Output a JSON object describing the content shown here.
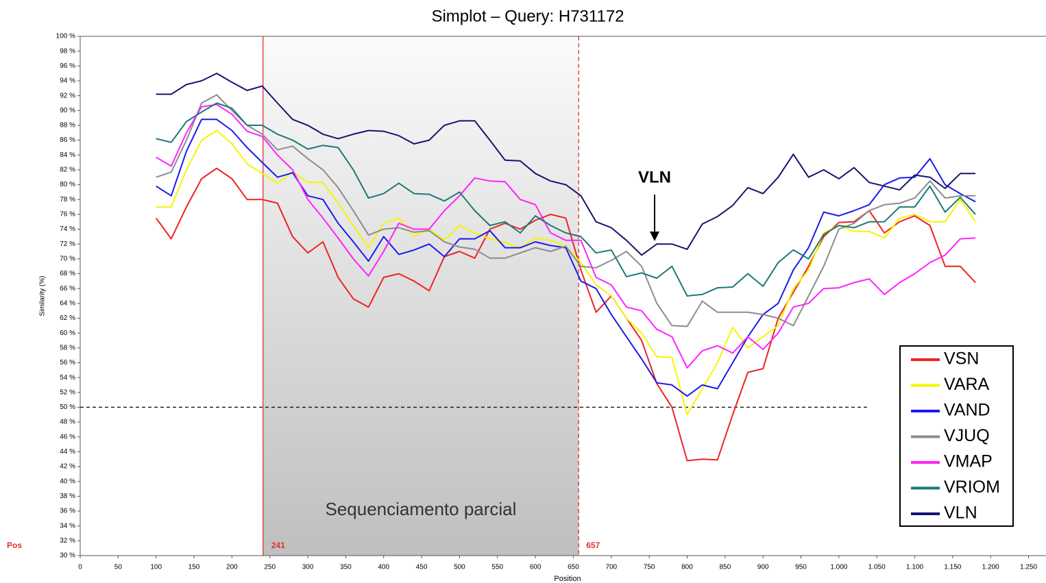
{
  "chart_data": {
    "type": "line",
    "title": "Simplot – Query:   H731172",
    "xlabel": "Position",
    "ylabel": "Similarity (%)",
    "pos_label": "Pos",
    "annotation": "VLN",
    "highlight": {
      "start": 241,
      "end": 657,
      "label": "Sequenciamento parcial"
    },
    "reference_line": 50,
    "legend": "right",
    "grid": false,
    "xlim": [
      0,
      1273
    ],
    "ylim": [
      30,
      100
    ],
    "xticks": [
      0,
      50,
      100,
      150,
      200,
      250,
      300,
      350,
      400,
      450,
      500,
      550,
      600,
      650,
      700,
      750,
      800,
      850,
      900,
      950,
      {
        "value": 1000,
        "label": "1.000"
      },
      {
        "value": 1050,
        "label": "1.050"
      },
      {
        "value": 1100,
        "label": "1.100"
      },
      {
        "value": 1150,
        "label": "1.150"
      },
      {
        "value": 1200,
        "label": "1.200"
      },
      {
        "value": 1250,
        "label": "1.250"
      }
    ],
    "yticks": [
      {
        "value": 30,
        "label": "30 %"
      },
      {
        "value": 32,
        "label": "32 %"
      },
      {
        "value": 34,
        "label": "34 %"
      },
      {
        "value": 36,
        "label": "36 %"
      },
      {
        "value": 38,
        "label": "38 %"
      },
      {
        "value": 40,
        "label": "40 %"
      },
      {
        "value": 42,
        "label": "42 %"
      },
      {
        "value": 44,
        "label": "44 %"
      },
      {
        "value": 46,
        "label": "46 %"
      },
      {
        "value": 48,
        "label": "48 %"
      },
      {
        "value": 50,
        "label": "50 %"
      },
      {
        "value": 52,
        "label": "52 %"
      },
      {
        "value": 54,
        "label": "54 %"
      },
      {
        "value": 56,
        "label": "56 %"
      },
      {
        "value": 58,
        "label": "58 %"
      },
      {
        "value": 60,
        "label": "60 %"
      },
      {
        "value": 62,
        "label": "62 %"
      },
      {
        "value": 64,
        "label": "64 %"
      },
      {
        "value": 66,
        "label": "66 %"
      },
      {
        "value": 68,
        "label": "68 %"
      },
      {
        "value": 70,
        "label": "70 %"
      },
      {
        "value": 72,
        "label": "72 %"
      },
      {
        "value": 74,
        "label": "74 %"
      },
      {
        "value": 76,
        "label": "76 %"
      },
      {
        "value": 78,
        "label": "78 %"
      },
      {
        "value": 80,
        "label": "80 %"
      },
      {
        "value": 82,
        "label": "82 %"
      },
      {
        "value": 84,
        "label": "84 %"
      },
      {
        "value": 86,
        "label": "86 %"
      },
      {
        "value": 88,
        "label": "88 %"
      },
      {
        "value": 90,
        "label": "90 %"
      },
      {
        "value": 92,
        "label": "92 %"
      },
      {
        "value": 94,
        "label": "94 %"
      },
      {
        "value": 96,
        "label": "96 %"
      },
      {
        "value": 98,
        "label": "98 %"
      },
      {
        "value": 100,
        "label": "100 %"
      }
    ],
    "x": [
      100,
      120,
      140,
      160,
      180,
      200,
      220,
      240,
      260,
      280,
      300,
      320,
      340,
      360,
      380,
      400,
      420,
      440,
      460,
      480,
      500,
      520,
      540,
      560,
      580,
      600,
      620,
      640,
      660,
      680,
      700,
      720,
      740,
      760,
      780,
      800,
      820,
      840,
      860,
      880,
      900,
      920,
      940,
      960,
      980,
      1000,
      1020,
      1040,
      1060,
      1080,
      1100,
      1120,
      1140,
      1160,
      1180
    ],
    "series": [
      {
        "name": "VSN",
        "color": "#ee2222",
        "values": [
          75.5,
          72.7,
          77,
          80.8,
          82.2,
          80.8,
          78,
          78,
          77.5,
          73,
          70.8,
          72.3,
          67.5,
          64.6,
          63.5,
          67.5,
          68,
          67,
          65.7,
          70.3,
          71,
          70.1,
          74,
          74.8,
          74,
          75.2,
          76,
          75.5,
          68.5,
          62.8,
          65,
          62,
          59,
          53.2,
          50,
          42.8,
          43,
          42.9,
          49,
          54.7,
          55.2,
          62,
          65.5,
          69,
          73,
          74.9,
          75,
          76.5,
          73.5,
          75,
          75.8,
          74.5,
          69,
          69,
          66.8
        ]
      },
      {
        "name": "VARA",
        "color": "#f5f500",
        "values": [
          77,
          77,
          82,
          86,
          87.3,
          85.5,
          82.8,
          81.5,
          80.2,
          81.7,
          80.3,
          80.3,
          77.5,
          74.5,
          71.5,
          74.8,
          75.5,
          73,
          74,
          72.5,
          74.5,
          73.5,
          72.7,
          72.2,
          71.5,
          72.8,
          72.5,
          71.7,
          69.5,
          66.5,
          65,
          62,
          60,
          56.8,
          56.7,
          49,
          52.5,
          56,
          60.8,
          58,
          59.5,
          61,
          66,
          68.5,
          73.5,
          74.5,
          73.7,
          73.7,
          72.8,
          75.5,
          76,
          75,
          75,
          78,
          75
        ]
      },
      {
        "name": "VAND",
        "color": "#1a1aee",
        "values": [
          79.8,
          78.5,
          84.5,
          88.8,
          88.8,
          87.3,
          85,
          83,
          81,
          81.6,
          78.5,
          78,
          74.8,
          72.3,
          69.7,
          73,
          70.6,
          71.2,
          72,
          70.3,
          72.7,
          72.7,
          73.8,
          71.5,
          71.5,
          72.3,
          71.8,
          71.5,
          67,
          66,
          62.5,
          59.5,
          56.5,
          53.3,
          53,
          51.5,
          53,
          52.5,
          56,
          59.5,
          62.5,
          64,
          68.5,
          71.5,
          76.3,
          75.8,
          76.5,
          77.3,
          80,
          80.9,
          81,
          83.5,
          80,
          78.8,
          77.7
        ]
      },
      {
        "name": "VJUQ",
        "color": "#8c8c8c",
        "values": [
          81,
          81.7,
          86,
          91,
          92.1,
          90,
          88,
          86.8,
          84.7,
          85.2,
          83.5,
          82,
          79.6,
          76.5,
          73.2,
          74,
          74.2,
          73.6,
          73.8,
          72.3,
          71.6,
          71.3,
          70.1,
          70.1,
          70.8,
          71.5,
          71,
          71.7,
          69,
          68.8,
          69.8,
          71,
          69,
          64,
          61,
          60.9,
          64.3,
          62.8,
          62.8,
          62.8,
          62.5,
          62,
          61,
          65,
          69,
          74,
          74.8,
          76.5,
          77.3,
          77.5,
          78.2,
          80.5,
          78.2,
          78.5,
          78.5
        ]
      },
      {
        "name": "VMAP",
        "color": "#ff22ff",
        "values": [
          83.7,
          82.5,
          87,
          90.5,
          90.8,
          89.5,
          87.2,
          86.5,
          84,
          82,
          78,
          75.5,
          72.8,
          70,
          67.7,
          71,
          74.8,
          74,
          74,
          76.5,
          78.5,
          80.9,
          80.5,
          80.4,
          78,
          77.3,
          73.5,
          72.5,
          72.5,
          67.5,
          66.5,
          63.5,
          63,
          60.5,
          59.5,
          55.3,
          57.6,
          58.3,
          57.3,
          59.5,
          57.8,
          60,
          63.5,
          64,
          66,
          66.1,
          66.8,
          67.3,
          65.2,
          66.8,
          68,
          69.5,
          70.5,
          72.7,
          72.8
        ]
      },
      {
        "name": "VRIOM",
        "color": "#1a7a74",
        "values": [
          86.2,
          85.7,
          88.5,
          89.8,
          91,
          90.3,
          88,
          88,
          86.8,
          86,
          84.8,
          85.3,
          85,
          82,
          78.2,
          78.8,
          80.2,
          78.8,
          78.7,
          77.8,
          79,
          76.5,
          74.5,
          75,
          73.5,
          75.8,
          74.5,
          73.5,
          73,
          70.8,
          71.2,
          67.6,
          68.1,
          67.4,
          69,
          65,
          65.2,
          66.1,
          66.2,
          68,
          66.3,
          69.5,
          71.2,
          70,
          73.3,
          74.5,
          74.2,
          75,
          75,
          77,
          77,
          79.8,
          76.3,
          78.3,
          76
        ]
      },
      {
        "name": "VLN",
        "color": "#14146e",
        "values": [
          92.2,
          92.2,
          93.5,
          94,
          95,
          93.8,
          92.7,
          93.3,
          91,
          88.8,
          88,
          86.8,
          86.2,
          86.8,
          87.3,
          87.2,
          86.6,
          85.5,
          86,
          88,
          88.6,
          88.6,
          86,
          83.3,
          83.2,
          81.5,
          80.5,
          80,
          78.5,
          75,
          74.2,
          72.5,
          70.5,
          72,
          72,
          71.3,
          74.7,
          75.7,
          77.2,
          79.6,
          78.8,
          81,
          84.1,
          81,
          82,
          80.8,
          82.3,
          80.3,
          79.8,
          79.3,
          81.3,
          81,
          79.5,
          81.5,
          81.5
        ]
      }
    ]
  }
}
